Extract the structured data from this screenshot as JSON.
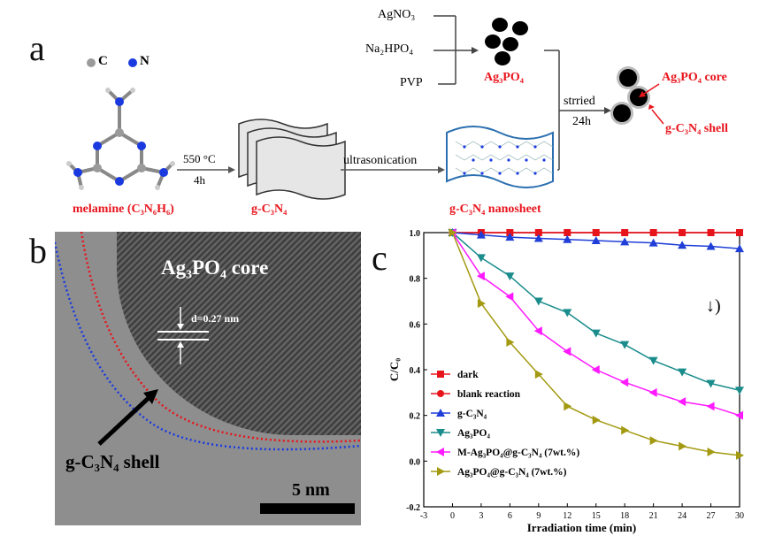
{
  "panel_a": {
    "letter": "a",
    "legend_c": "C",
    "legend_n": "N",
    "melamine_label": "melamine  (C₃N₆H₆)",
    "cond_temp": "550 °C",
    "cond_time": "4h",
    "gcn_label": "g-C₃N₄",
    "ultrasonication": "ultrasonication",
    "nanosheet_label": "g-C₃N₄ nanosheet",
    "reagent1": "AgNO₃",
    "reagent2": "Na₂HPO₄",
    "reagent3": "PVP",
    "agpo_label": "Ag₃PO₄",
    "stirred": "strried",
    "stir_time": "24h",
    "core_label": "Ag₃PO₄ core",
    "shell_label": "g-C₃N₄ shell"
  },
  "panel_b": {
    "letter": "b",
    "core_label": "Ag₃PO₄  core",
    "spacing": "d=0.27 nm",
    "shell_label": "g-C₃N₄  shell",
    "scale": "5 nm"
  },
  "panel_c": {
    "letter": "c",
    "annotation": "↓)"
  },
  "chart_data": {
    "type": "line",
    "xlabel": "Irradiation time (min)",
    "ylabel": "C/C₀",
    "xlim": [
      -3,
      30
    ],
    "ylim": [
      -0.2,
      1.0
    ],
    "xticks": [
      -3,
      0,
      3,
      6,
      9,
      12,
      15,
      18,
      21,
      24,
      27,
      30
    ],
    "yticks": [
      -0.2,
      0.0,
      0.2,
      0.4,
      0.6,
      0.8,
      1.0
    ],
    "legend_position": "bottom-left",
    "x": [
      0,
      3,
      6,
      9,
      12,
      15,
      18,
      21,
      24,
      27,
      30
    ],
    "series": [
      {
        "name": "dark",
        "color": "#e8141c",
        "marker": "square",
        "values": [
          1.0,
          1.0,
          1.0,
          1.0,
          1.0,
          1.0,
          1.0,
          1.0,
          1.0,
          1.0,
          1.0
        ]
      },
      {
        "name": "blank reaction",
        "color": "#e8141c",
        "marker": "circle",
        "values": [
          1.0,
          1.0,
          1.0,
          1.0,
          1.0,
          1.0,
          1.0,
          1.0,
          1.0,
          1.0,
          1.0
        ]
      },
      {
        "name": "g-C₃N₄",
        "color": "#1f3fd8",
        "marker": "triangle-up",
        "values": [
          1.0,
          0.99,
          0.98,
          0.975,
          0.97,
          0.965,
          0.96,
          0.955,
          0.945,
          0.94,
          0.93
        ]
      },
      {
        "name": "Ag₃PO₄",
        "color": "#1a8c8c",
        "marker": "triangle-down",
        "values": [
          1.0,
          0.89,
          0.81,
          0.7,
          0.65,
          0.56,
          0.51,
          0.44,
          0.39,
          0.34,
          0.31
        ]
      },
      {
        "name": "M-Ag₃PO₄@g-C₃N₄ (7wt.%)",
        "color": "#ff1aff",
        "marker": "triangle-left",
        "values": [
          1.0,
          0.81,
          0.72,
          0.57,
          0.48,
          0.4,
          0.345,
          0.3,
          0.26,
          0.24,
          0.2
        ]
      },
      {
        "name": "Ag₃PO₄@g-C₃N₄ (7wt.%)",
        "color": "#a39a12",
        "marker": "triangle-right",
        "values": [
          1.0,
          0.69,
          0.52,
          0.38,
          0.24,
          0.18,
          0.135,
          0.09,
          0.065,
          0.04,
          0.025
        ]
      }
    ]
  }
}
